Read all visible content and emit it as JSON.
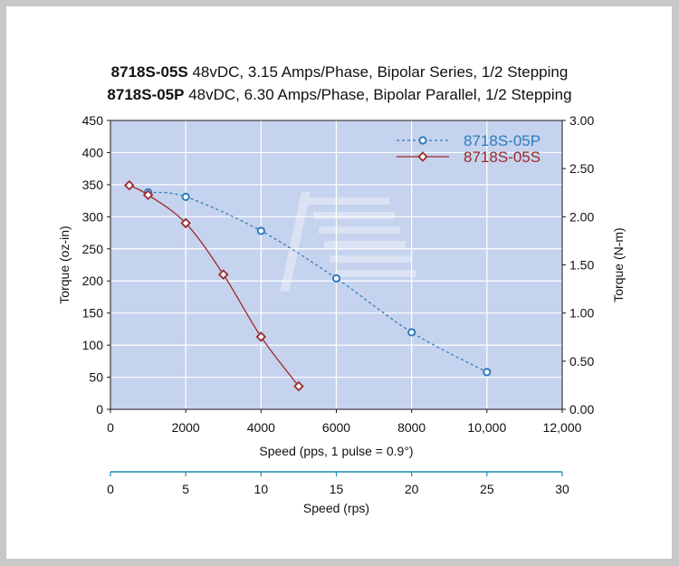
{
  "title": {
    "line1_bold": "8718S-05S",
    "line1_rest": " 48vDC, 3.15 Amps/Phase, Bipolar Series, 1/2 Stepping",
    "line2_bold": "8718S-05P",
    "line2_rest": " 48vDC, 6.30 Amps/Phase, Bipolar Parallel, 1/2 Stepping"
  },
  "colors": {
    "plot_bg": "#c6d3ee",
    "grid": "#ffffff",
    "series_p": "#2b7bbf",
    "series_s": "#9b2b2b",
    "rps_axis": "#1a8fb0"
  },
  "chart_data": {
    "type": "line",
    "xlabel": "Speed (pps, 1 pulse = 0.9°)",
    "ylabel_left": "Torque (oz-in)",
    "ylabel_right": "Torque (N-m)",
    "xlabel_secondary": "Speed (rps)",
    "xlim": [
      0,
      12000
    ],
    "ylim_left": [
      0,
      450
    ],
    "ylim_right": [
      0,
      3.0
    ],
    "secondary_xlim": [
      0,
      30
    ],
    "x_ticks": [
      "0",
      "2000",
      "4000",
      "6000",
      "8000",
      "10,000",
      "12,000"
    ],
    "y_left_ticks": [
      "0",
      "50",
      "100",
      "150",
      "200",
      "250",
      "300",
      "350",
      "400",
      "450"
    ],
    "y_right_ticks": [
      "0.00",
      "0.50",
      "1.00",
      "1.50",
      "2.00",
      "2.50",
      "3.00"
    ],
    "secondary_x_ticks": [
      "0",
      "5",
      "10",
      "15",
      "20",
      "25",
      "30"
    ],
    "grid": true,
    "legend_position": "top-right",
    "series": [
      {
        "name": "8718S-05P",
        "style": "dashed",
        "marker": "circle",
        "x": [
          1000,
          2000,
          4000,
          6000,
          8000,
          10000
        ],
        "y": [
          338,
          331,
          278,
          204,
          120,
          58
        ]
      },
      {
        "name": "8718S-05S",
        "style": "solid",
        "marker": "diamond",
        "x": [
          500,
          1000,
          2000,
          3000,
          4000,
          5000
        ],
        "y": [
          349,
          334,
          290,
          210,
          113,
          36
        ]
      }
    ]
  }
}
